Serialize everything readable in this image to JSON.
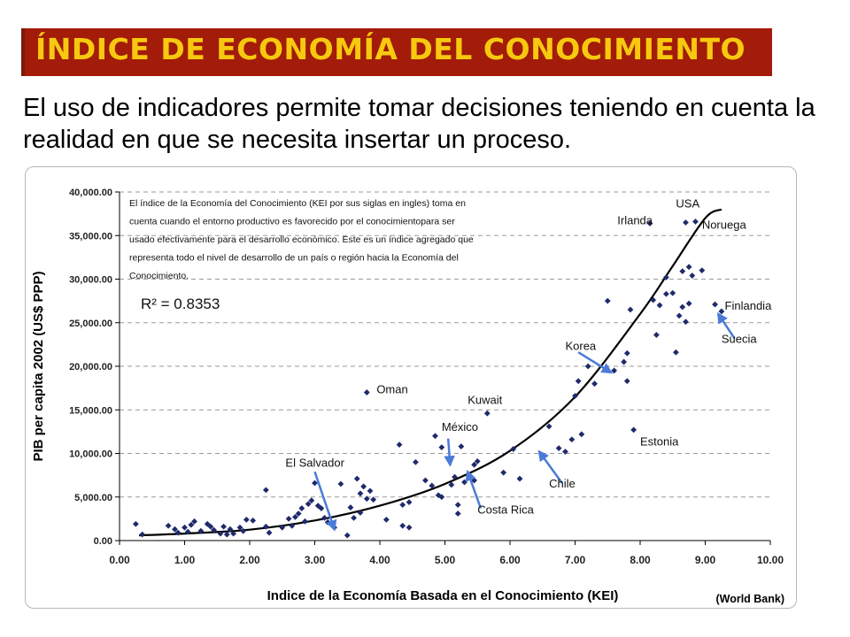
{
  "slide": {
    "title": "ÍNDICE DE ECONOMÍA DEL CONOCIMIENTO",
    "subtitle": "El uso de indicadores permite tomar decisiones teniendo en cuenta la realidad en que se necesita insertar un proceso.",
    "source": "(World Bank)"
  },
  "chart_data": {
    "type": "scatter",
    "xlabel": "Indice de la Economía Basada en el Conocimiento (KEI)",
    "ylabel": "PIB per capita 2002 (US$ PPP)",
    "xlim": [
      0,
      10
    ],
    "ylim": [
      0,
      40000
    ],
    "grid": "horizontal dashed",
    "x_ticks": [
      "0.00",
      "1.00",
      "2.00",
      "3.00",
      "4.00",
      "5.00",
      "6.00",
      "7.00",
      "8.00",
      "9.00",
      "10.00"
    ],
    "y_ticks": [
      "0.00",
      "5,000.00",
      "10,000.00",
      "15,000.00",
      "20,000.00",
      "25,000.00",
      "30,000.00",
      "35,000.00",
      "40,000.00"
    ],
    "r2_label": "R² = 0.8353",
    "note_lines": [
      "El índice de la Economía del Conocimiento (KEI por sus siglas en ingles) toma en",
      "cuenta cuando el entorno productivo es favorecido por el conocimientopara ser",
      "usado efectivamente  para el desarrollo económico. Este es un índice agregado que",
      "representa todo el nivel de desarrollo de un país o región hacia la Economía del",
      "Conocimiento."
    ],
    "marker_color": "#1f2a6b",
    "trend_color": "#000000",
    "arrow_color": "#4a7bd8",
    "trendline": [
      [
        0.3,
        600
      ],
      [
        1,
        800
      ],
      [
        2,
        1250
      ],
      [
        3,
        2300
      ],
      [
        4,
        4000
      ],
      [
        5,
        6500
      ],
      [
        6,
        10300
      ],
      [
        7,
        16500
      ],
      [
        8,
        26000
      ],
      [
        8.5,
        31500
      ],
      [
        9,
        37000
      ],
      [
        9.25,
        38000
      ]
    ],
    "points": [
      [
        0.25,
        1900
      ],
      [
        0.35,
        700
      ],
      [
        0.75,
        1700
      ],
      [
        0.85,
        1300
      ],
      [
        0.9,
        900
      ],
      [
        1.0,
        1500
      ],
      [
        1.05,
        1000
      ],
      [
        1.1,
        1800
      ],
      [
        1.15,
        2200
      ],
      [
        1.25,
        1100
      ],
      [
        1.35,
        1900
      ],
      [
        1.4,
        1600
      ],
      [
        1.45,
        1200
      ],
      [
        1.55,
        800
      ],
      [
        1.6,
        1600
      ],
      [
        1.65,
        700
      ],
      [
        1.7,
        1300
      ],
      [
        1.75,
        800
      ],
      [
        1.85,
        1500
      ],
      [
        1.9,
        1100
      ],
      [
        1.95,
        2400
      ],
      [
        2.05,
        2300
      ],
      [
        2.25,
        5800
      ],
      [
        2.25,
        1600
      ],
      [
        2.3,
        900
      ],
      [
        2.5,
        1500
      ],
      [
        2.6,
        2500
      ],
      [
        2.65,
        1700
      ],
      [
        2.7,
        2700
      ],
      [
        2.75,
        3100
      ],
      [
        2.8,
        3700
      ],
      [
        2.85,
        2200
      ],
      [
        2.9,
        4200
      ],
      [
        2.95,
        4600
      ],
      [
        3.0,
        6600
      ],
      [
        3.05,
        4000
      ],
      [
        3.1,
        3700
      ],
      [
        3.15,
        2600
      ],
      [
        3.2,
        2100
      ],
      [
        3.3,
        1500
      ],
      [
        3.4,
        6500
      ],
      [
        3.5,
        600
      ],
      [
        3.55,
        3800
      ],
      [
        3.6,
        2600
      ],
      [
        3.65,
        7100
      ],
      [
        3.7,
        3200
      ],
      [
        3.7,
        5400
      ],
      [
        3.75,
        6200
      ],
      [
        3.8,
        4800
      ],
      [
        3.85,
        5700
      ],
      [
        3.9,
        4700
      ],
      [
        3.8,
        17000
      ],
      [
        4.1,
        2400
      ],
      [
        4.35,
        4100
      ],
      [
        4.35,
        1700
      ],
      [
        4.45,
        4400
      ],
      [
        4.45,
        1500
      ],
      [
        4.3,
        11000
      ],
      [
        4.55,
        9000
      ],
      [
        4.7,
        6900
      ],
      [
        4.8,
        6300
      ],
      [
        4.85,
        12000
      ],
      [
        4.9,
        5200
      ],
      [
        4.95,
        5000
      ],
      [
        4.95,
        10700
      ],
      [
        5.1,
        6400
      ],
      [
        5.15,
        7300
      ],
      [
        5.2,
        3100
      ],
      [
        5.2,
        4100
      ],
      [
        5.25,
        10800
      ],
      [
        5.3,
        6700
      ],
      [
        5.45,
        8700
      ],
      [
        5.5,
        9100
      ],
      [
        5.45,
        6900
      ],
      [
        5.65,
        14600
      ],
      [
        5.9,
        7800
      ],
      [
        6.05,
        10500
      ],
      [
        6.15,
        7100
      ],
      [
        6.6,
        13100
      ],
      [
        6.75,
        10600
      ],
      [
        6.85,
        10200
      ],
      [
        6.95,
        11600
      ],
      [
        7.0,
        16600
      ],
      [
        7.05,
        18300
      ],
      [
        7.1,
        12200
      ],
      [
        7.2,
        20000
      ],
      [
        7.3,
        18000
      ],
      [
        7.5,
        27500
      ],
      [
        7.6,
        19500
      ],
      [
        7.75,
        20500
      ],
      [
        7.8,
        18300
      ],
      [
        7.8,
        21500
      ],
      [
        7.85,
        26500
      ],
      [
        7.9,
        12700
      ],
      [
        8.15,
        36400
      ],
      [
        8.2,
        27600
      ],
      [
        8.25,
        23600
      ],
      [
        8.3,
        27000
      ],
      [
        8.4,
        28300
      ],
      [
        8.4,
        30200
      ],
      [
        8.5,
        28400
      ],
      [
        8.55,
        21600
      ],
      [
        8.6,
        25800
      ],
      [
        8.65,
        26800
      ],
      [
        8.65,
        30900
      ],
      [
        8.7,
        36500
      ],
      [
        8.7,
        25100
      ],
      [
        8.75,
        27200
      ],
      [
        8.75,
        31400
      ],
      [
        8.8,
        30400
      ],
      [
        8.85,
        36600
      ],
      [
        8.95,
        31000
      ],
      [
        9.15,
        27100
      ],
      [
        9.25,
        26300
      ]
    ],
    "labels": [
      {
        "text": "USA",
        "x": 8.55,
        "y": 38200
      },
      {
        "text": "Irlanda",
        "x": 7.65,
        "y": 36300
      },
      {
        "text": "Noruega",
        "x": 8.95,
        "y": 35800
      },
      {
        "text": "Finlandia",
        "x": 9.3,
        "y": 26500
      },
      {
        "text": "Suecia",
        "x": 9.25,
        "y": 22700
      },
      {
        "text": "Korea",
        "x": 6.85,
        "y": 21900
      },
      {
        "text": "Oman",
        "x": 3.95,
        "y": 16900
      },
      {
        "text": "Kuwait",
        "x": 5.35,
        "y": 15700
      },
      {
        "text": "México",
        "x": 4.95,
        "y": 12600
      },
      {
        "text": "Estonia",
        "x": 8.0,
        "y": 10900
      },
      {
        "text": "El Salvador",
        "x": 2.55,
        "y": 8500
      },
      {
        "text": "Chile",
        "x": 6.6,
        "y": 6100
      },
      {
        "text": "Costa Rica",
        "x": 5.5,
        "y": 3100
      }
    ],
    "arrows": [
      {
        "from": [
          3.0,
          7900
        ],
        "to": [
          3.3,
          1300
        ]
      },
      {
        "from": [
          5.05,
          11700
        ],
        "to": [
          5.08,
          8700
        ]
      },
      {
        "from": [
          5.55,
          3700
        ],
        "to": [
          5.35,
          7900
        ]
      },
      {
        "from": [
          6.8,
          6600
        ],
        "to": [
          6.45,
          10200
        ]
      },
      {
        "from": [
          7.05,
          21600
        ],
        "to": [
          7.55,
          19300
        ]
      },
      {
        "from": [
          9.45,
          23200
        ],
        "to": [
          9.2,
          26000
        ]
      }
    ]
  }
}
